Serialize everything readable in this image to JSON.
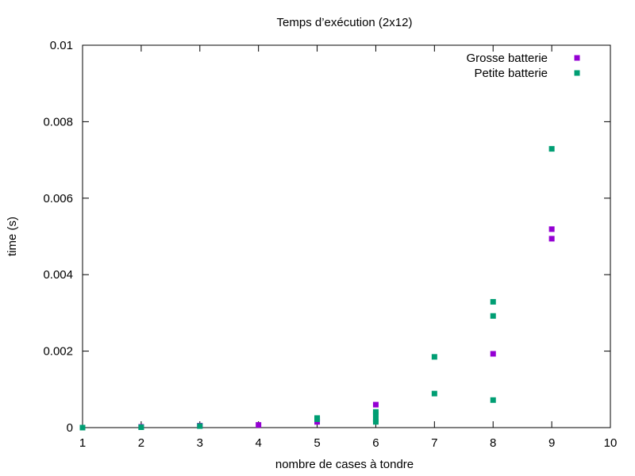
{
  "chart_data": {
    "type": "scatter",
    "title": "Temps d’exécution (2x12)",
    "xlabel": "nombre de cases à tondre",
    "ylabel": "time (s)",
    "xlim": [
      1,
      10
    ],
    "ylim": [
      0,
      0.01
    ],
    "xticks": [
      1,
      2,
      3,
      4,
      5,
      6,
      7,
      8,
      9,
      10
    ],
    "yticks": [
      0,
      0.002,
      0.004,
      0.006,
      0.008,
      0.01
    ],
    "ytick_labels": [
      "0",
      "0.002",
      "0.004",
      "0.006",
      "0.008",
      "0.01"
    ],
    "grid": false,
    "legend_position": "top-right",
    "series": [
      {
        "name": "Grosse batterie",
        "color": "#9400d3",
        "points": [
          [
            1,
            0.0
          ],
          [
            2,
            2e-05
          ],
          [
            3,
            5e-05
          ],
          [
            4,
            7e-05
          ],
          [
            5,
            0.00015
          ],
          [
            6,
            0.0006
          ],
          [
            8,
            0.00193
          ],
          [
            9,
            0.00519
          ],
          [
            9,
            0.00494
          ]
        ]
      },
      {
        "name": "Petite batterie",
        "color": "#009e73",
        "points": [
          [
            1,
            0.0
          ],
          [
            2,
            1e-05
          ],
          [
            3,
            4e-05
          ],
          [
            5,
            0.00022
          ],
          [
            5,
            0.00025
          ],
          [
            6,
            0.00015
          ],
          [
            6,
            0.00022
          ],
          [
            6,
            0.00035
          ],
          [
            6,
            0.00041
          ],
          [
            7,
            0.00185
          ],
          [
            7,
            0.00089
          ],
          [
            8,
            0.00329
          ],
          [
            8,
            0.00292
          ],
          [
            8,
            0.00072
          ],
          [
            9,
            0.00729
          ]
        ]
      }
    ]
  }
}
